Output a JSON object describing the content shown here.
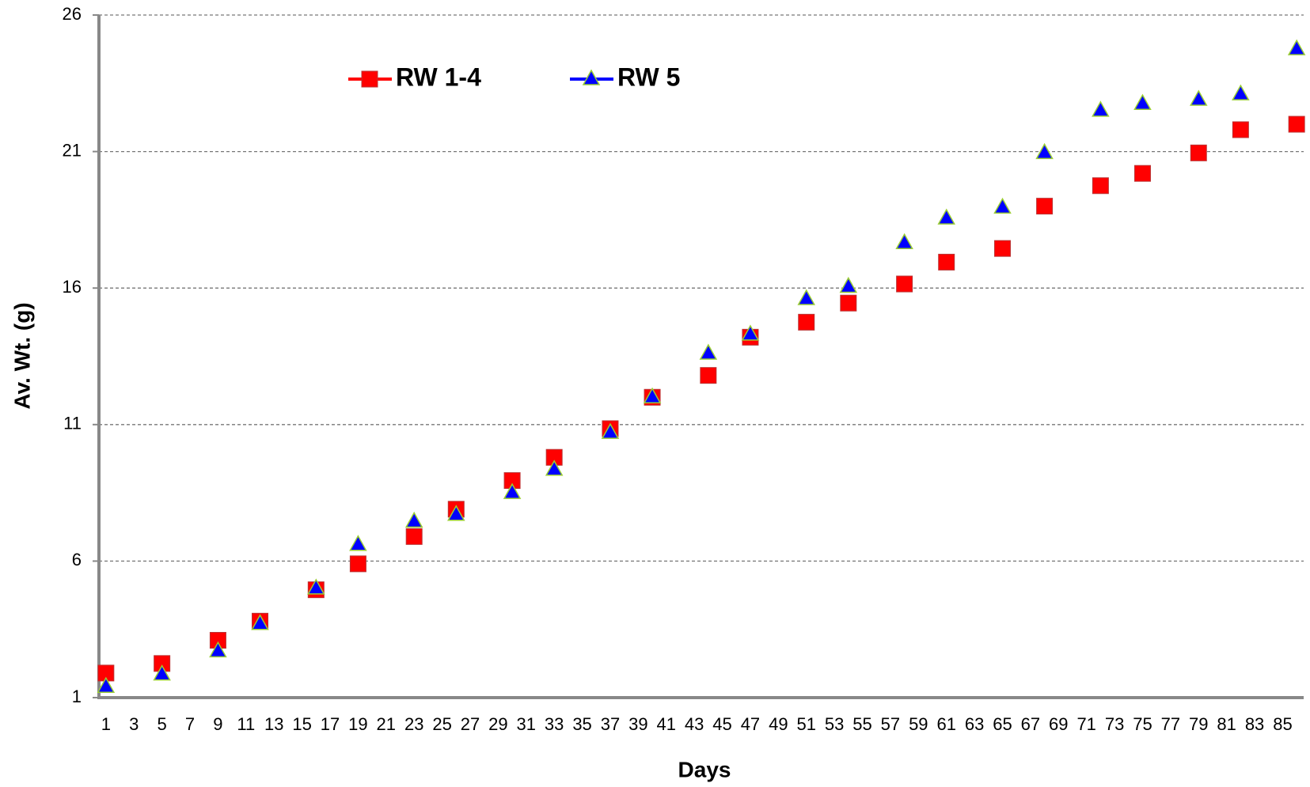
{
  "chart_data": {
    "type": "scatter",
    "x_label": "Days",
    "y_label": "Av. Wt. (g)",
    "x": [
      1,
      5,
      9,
      12,
      16,
      19,
      23,
      26,
      30,
      33,
      37,
      40,
      44,
      47,
      51,
      54,
      58,
      61,
      65,
      68,
      72,
      75,
      79,
      82,
      86
    ],
    "series": [
      {
        "name": "RW 1-4",
        "color": "#ff0000",
        "marker": "square",
        "values": [
          1.9,
          2.25,
          3.1,
          3.8,
          4.95,
          5.9,
          6.9,
          7.9,
          8.95,
          9.8,
          10.85,
          12.0,
          12.8,
          14.2,
          14.75,
          15.45,
          16.15,
          16.95,
          17.45,
          19.0,
          19.75,
          20.2,
          20.95,
          21.8,
          22.0
        ]
      },
      {
        "name": "RW 5",
        "color": "#0000ff",
        "marker": "triangle",
        "values": [
          1.4,
          1.85,
          2.7,
          3.7,
          5.0,
          6.6,
          7.45,
          7.7,
          8.5,
          9.35,
          10.7,
          12.0,
          13.6,
          14.3,
          15.6,
          16.05,
          17.65,
          18.55,
          18.95,
          20.95,
          22.5,
          22.75,
          22.9,
          23.1,
          24.75
        ]
      }
    ],
    "xlim": [
      0.5,
      86.5
    ],
    "xticks": [
      1,
      3,
      5,
      7,
      9,
      11,
      13,
      15,
      17,
      19,
      21,
      23,
      25,
      27,
      29,
      31,
      33,
      35,
      37,
      39,
      41,
      43,
      45,
      47,
      49,
      51,
      53,
      55,
      57,
      59,
      61,
      63,
      65,
      67,
      69,
      71,
      73,
      75,
      77,
      79,
      81,
      83,
      85
    ],
    "ylim": [
      1,
      26
    ],
    "yticks": [
      1,
      6,
      11,
      16,
      21,
      26
    ],
    "grid": true,
    "legend": "top-left"
  }
}
